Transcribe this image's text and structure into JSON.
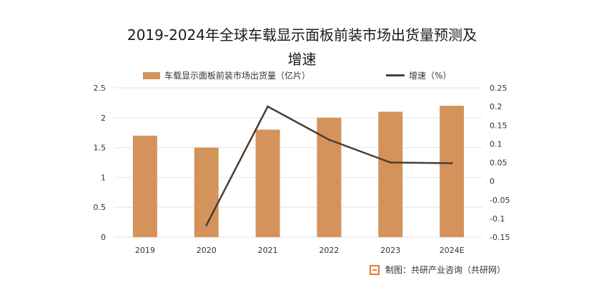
{
  "title_lines": [
    "2019-2024年全球车载显示面板前装市场出货量预测及",
    "增速"
  ],
  "legend": {
    "bar_label": "车载显示面板前装市场出货量（亿片）",
    "line_label": "增速（%）"
  },
  "source": "制图：共研产业咨询（共研网）",
  "colors": {
    "bar": "#d4935a",
    "line": "#4a3f33",
    "grid": "#e6e6e6",
    "axis_text": "#333333",
    "logo": "#e07a30"
  },
  "chart_data": {
    "type": "bar",
    "categories": [
      "2019",
      "2020",
      "2021",
      "2022",
      "2023",
      "2024E"
    ],
    "series": [
      {
        "name": "车载显示面板前装市场出货量（亿片）",
        "type": "bar",
        "axis": "left",
        "values": [
          1.7,
          1.5,
          1.8,
          2.0,
          2.1,
          2.2
        ]
      },
      {
        "name": "增速（%）",
        "type": "line",
        "axis": "right",
        "values": [
          null,
          -0.118,
          0.2,
          0.111,
          0.05,
          0.048
        ]
      }
    ],
    "ylim_left": [
      0,
      2.5
    ],
    "yticks_left": [
      "0",
      "0.5",
      "1",
      "1.5",
      "2",
      "2.5"
    ],
    "ylim_right": [
      -0.15,
      0.25
    ],
    "yticks_right": [
      "-0.15",
      "-0.1",
      "-0.05",
      "0",
      "0.05",
      "0.1",
      "0.15",
      "0.2",
      "0.25"
    ],
    "grid": true,
    "legend_position": "top"
  }
}
